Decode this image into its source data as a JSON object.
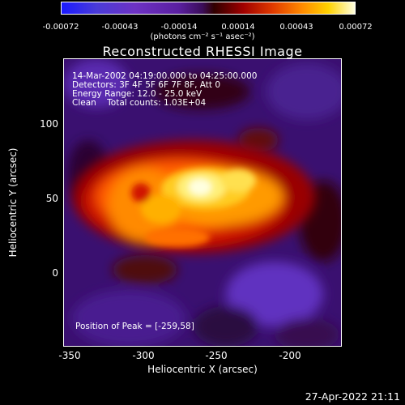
{
  "colorbar": {
    "ticks": [
      "-0.00072",
      "-0.00043",
      "-0.00014",
      "0.00014",
      "0.00043",
      "0.00072"
    ],
    "unit_label": "(photons cm⁻² s⁻¹ asec⁻²)"
  },
  "image_title": "Reconstructed RHESSI Image",
  "info": {
    "time_range": "14-Mar-2002 04:19:00.000 to 04:25:00.000",
    "detectors": "Detectors: 3F 4F 5F 6F 7F 8F, Att 0",
    "energy": "Energy Range: 12.0 - 25.0 keV",
    "clean": "Clean    Total counts: 1.03E+04",
    "peak": "Position of Peak = [-259,58]"
  },
  "axes": {
    "x_label": "Heliocentric X (arcsec)",
    "y_label": "Heliocentric Y (arcsec)",
    "x_ticks": [
      "-350",
      "-300",
      "-250",
      "-200"
    ],
    "y_ticks": [
      "100",
      "50",
      "0"
    ]
  },
  "timestamp": "27-Apr-2022 21:11",
  "colors": {
    "background": "#000000",
    "hot_core": "#ffffe0",
    "mid": "#ff8a00",
    "low": "#a00000",
    "negative": "#5a1fa0"
  }
}
